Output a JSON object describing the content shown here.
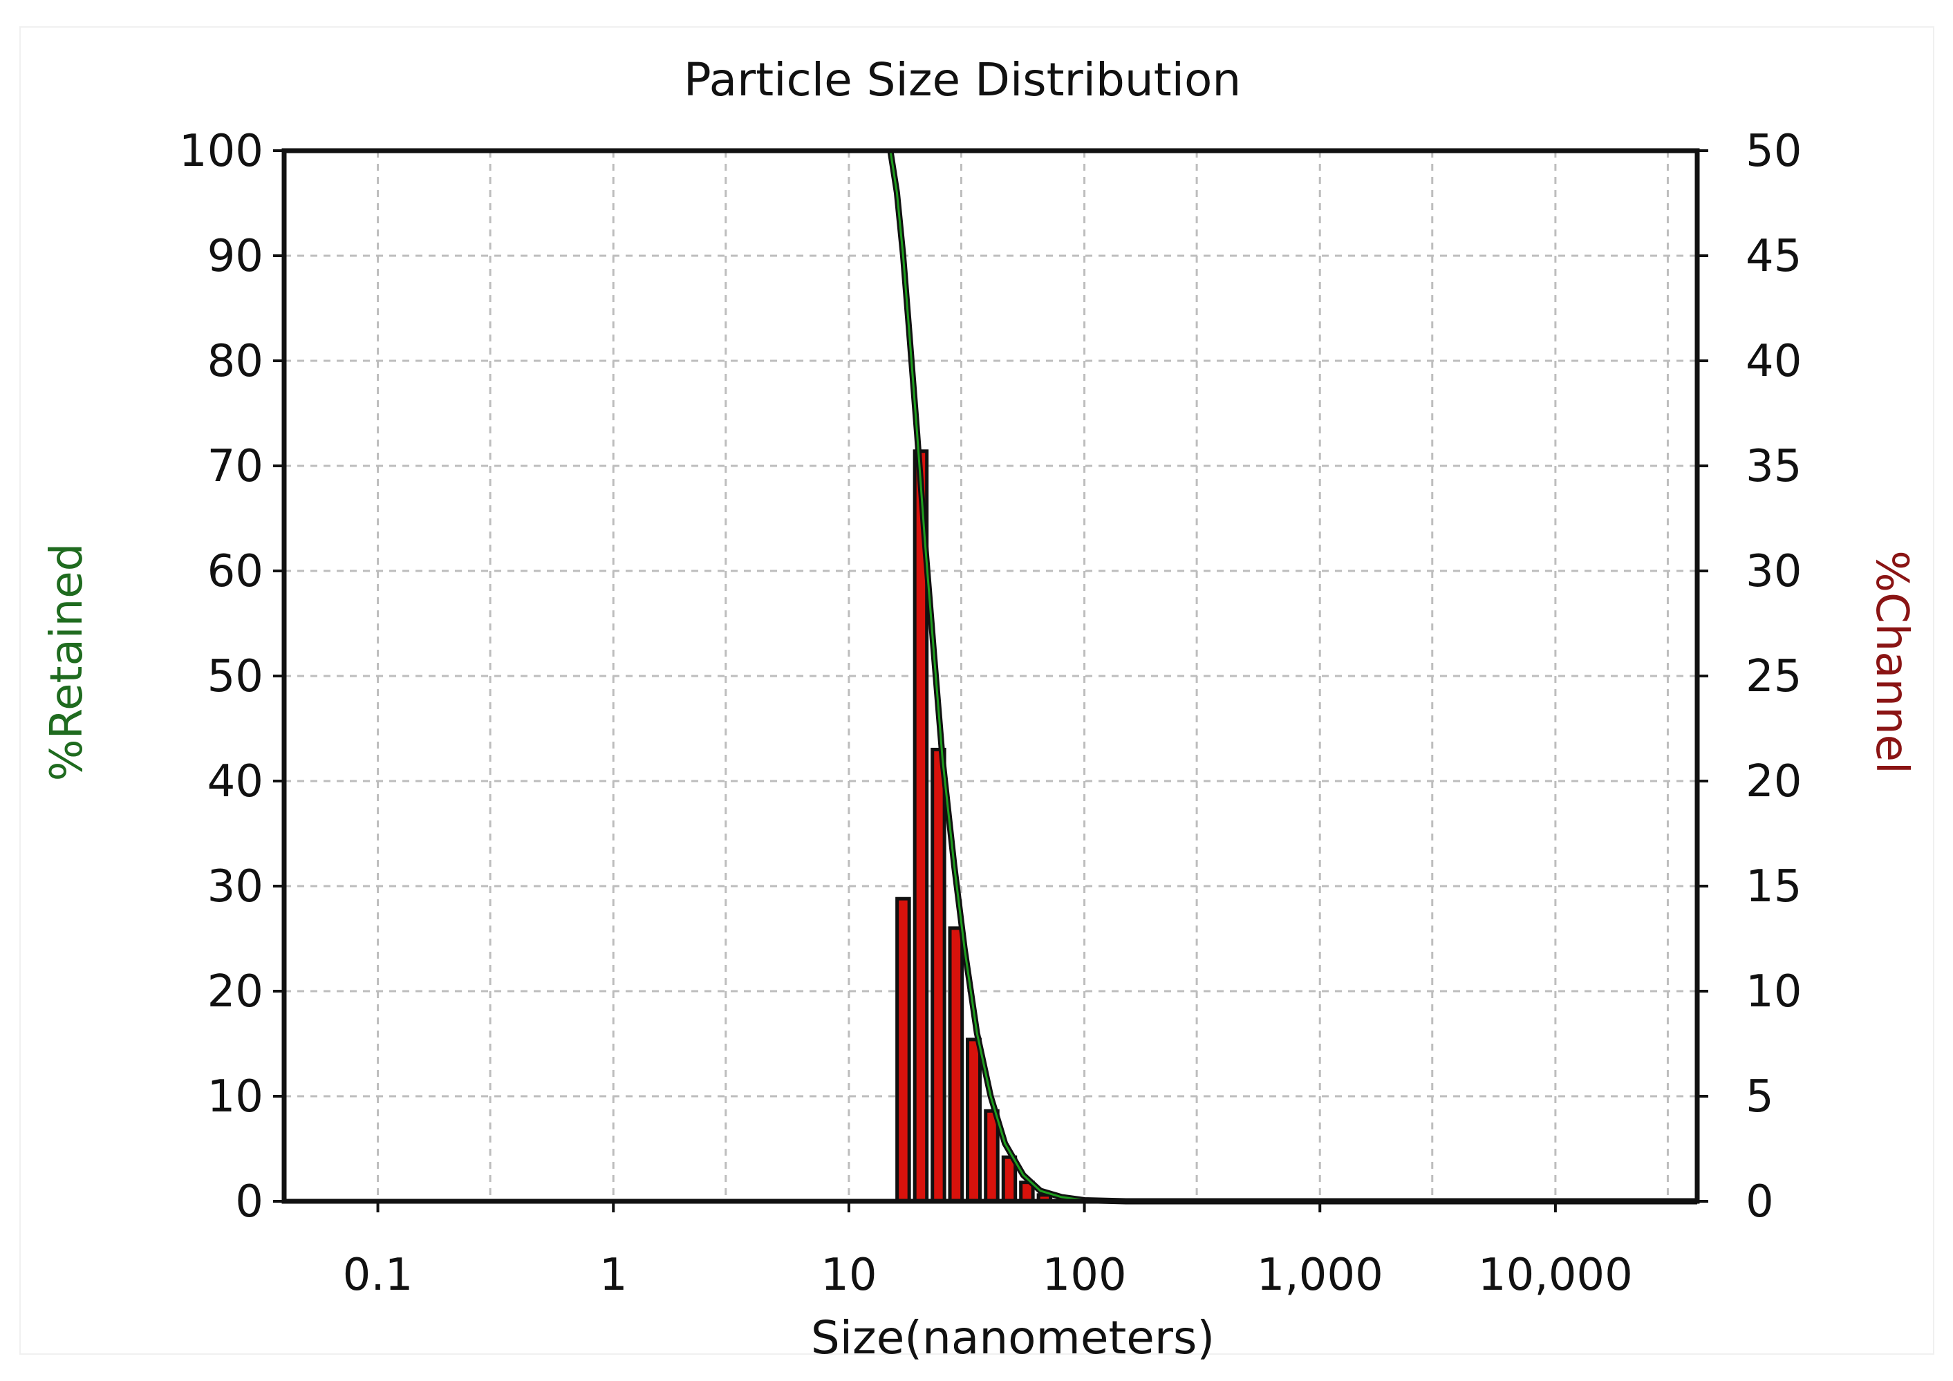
{
  "colors": {
    "cumulative": "#1e9e1e",
    "bars": "#d8120c",
    "bar_edge": "#111111",
    "grid": "#bdbdbd",
    "left_label": "#1f6b1f",
    "right_label": "#8a1414"
  },
  "chart_data": {
    "type": "bar",
    "title": "Particle Size Distribution",
    "xlabel": "Size(nanometers)",
    "ylabel": "%Retained",
    "ylabel_right": "%Channel",
    "x_scale": "log",
    "xlim": [
      0.04,
      40000
    ],
    "x_ticks": [
      0.1,
      1,
      10,
      100,
      1000,
      10000
    ],
    "x_tick_labels": [
      "0.1",
      "1",
      "10",
      "100",
      "1,000",
      "10,000"
    ],
    "ylim": [
      0,
      100
    ],
    "y_ticks": [
      "0",
      "10",
      "20",
      "30",
      "40",
      "50",
      "60",
      "70",
      "80",
      "90",
      "100"
    ],
    "ylim_right": [
      0,
      50
    ],
    "y_ticks_right": [
      "0",
      "5",
      "10",
      "15",
      "20",
      "25",
      "30",
      "35",
      "40",
      "45",
      "50"
    ],
    "grid": true,
    "series": [
      {
        "kind": "bar",
        "axis": "right",
        "sizes": [
          17.0,
          20.2,
          24.0,
          28.5,
          33.9,
          40.4,
          48.0,
          57.0,
          67.7
        ],
        "values": [
          14.4,
          35.7,
          21.5,
          13.0,
          7.7,
          4.3,
          2.1,
          0.9,
          0.3
        ]
      },
      {
        "kind": "line",
        "axis": "left",
        "x": [
          15.0,
          16.0,
          17.0,
          18.0,
          19.5,
          21.0,
          23.0,
          25.0,
          28.0,
          31.0,
          35.0,
          40.0,
          46.0,
          55.0,
          65.0,
          80.0,
          100.0,
          150.0,
          300.0,
          40000.0
        ],
        "y": [
          100,
          96,
          90,
          83,
          73,
          63,
          52,
          42,
          32,
          24,
          16,
          10,
          5.5,
          2.5,
          1.0,
          0.4,
          0.1,
          0.0,
          0.0,
          0.0
        ]
      }
    ]
  }
}
